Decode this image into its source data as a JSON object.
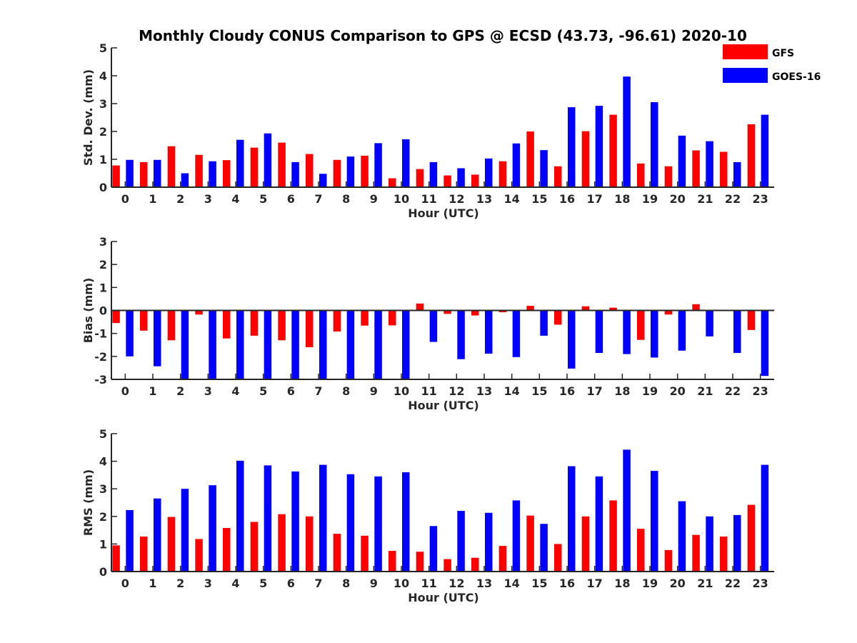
{
  "title": "Monthly Cloudy CONUS Comparison to GPS @ ECSD (43.73, -96.61) 2020-10",
  "legend": [
    {
      "name": "GFS",
      "color": "#ff0000"
    },
    {
      "name": "GOES-16",
      "color": "#0000ff"
    }
  ],
  "chart_data": [
    {
      "type": "bar",
      "title": "Monthly Cloudy CONUS Comparison to GPS @ ECSD (43.73, -96.61) 2020-10",
      "xlabel": "Hour (UTC)",
      "ylabel": "Std. Dev. (mm)",
      "ylim": [
        0,
        5
      ],
      "yticks": [
        0,
        1,
        2,
        3,
        4,
        5
      ],
      "categories": [
        "0",
        "1",
        "2",
        "3",
        "4",
        "5",
        "6",
        "7",
        "8",
        "9",
        "10",
        "11",
        "12",
        "13",
        "14",
        "15",
        "16",
        "17",
        "18",
        "19",
        "20",
        "21",
        "22",
        "23"
      ],
      "series": [
        {
          "name": "GFS",
          "color": "#ff0000",
          "values": [
            0.78,
            0.9,
            1.47,
            1.16,
            0.97,
            1.42,
            1.6,
            1.19,
            0.98,
            1.13,
            0.32,
            0.65,
            0.42,
            0.45,
            0.93,
            2.0,
            0.75,
            2.01,
            2.6,
            0.85,
            0.75,
            1.32,
            1.27,
            2.26
          ]
        },
        {
          "name": "GOES-16",
          "color": "#0000ff",
          "values": [
            0.98,
            0.98,
            0.5,
            0.93,
            1.7,
            1.93,
            0.9,
            0.48,
            1.1,
            1.58,
            1.72,
            0.9,
            0.68,
            1.03,
            1.57,
            1.33,
            2.87,
            2.92,
            3.97,
            3.05,
            1.85,
            1.65,
            0.9,
            2.6
          ]
        }
      ]
    },
    {
      "type": "bar",
      "title": "",
      "xlabel": "Hour (UTC)",
      "ylabel": "Bias (mm)",
      "ylim": [
        -3,
        3
      ],
      "yticks": [
        -3,
        -2,
        -1,
        0,
        1,
        2,
        3
      ],
      "categories": [
        "0",
        "1",
        "2",
        "3",
        "4",
        "5",
        "6",
        "7",
        "8",
        "9",
        "10",
        "11",
        "12",
        "13",
        "14",
        "15",
        "16",
        "17",
        "18",
        "19",
        "20",
        "21",
        "22",
        "23"
      ],
      "series": [
        {
          "name": "GFS",
          "color": "#ff0000",
          "values": [
            -0.55,
            -0.88,
            -1.3,
            -0.18,
            -1.22,
            -1.1,
            -1.3,
            -1.6,
            -0.92,
            -0.66,
            -0.65,
            0.3,
            -0.15,
            -0.22,
            -0.08,
            0.2,
            -0.62,
            0.18,
            0.12,
            -1.28,
            -0.18,
            0.27,
            0.0,
            -0.85
          ]
        },
        {
          "name": "GOES-16",
          "color": "#0000ff",
          "values": [
            -2.0,
            -2.43,
            -2.97,
            -3.0,
            -3.0,
            -3.0,
            -3.0,
            -3.0,
            -3.0,
            -3.0,
            -3.0,
            -1.37,
            -2.12,
            -1.88,
            -2.03,
            -1.1,
            -2.53,
            -1.85,
            -1.9,
            -2.05,
            -1.75,
            -1.13,
            -1.85,
            -2.85
          ]
        }
      ]
    },
    {
      "type": "bar",
      "title": "",
      "xlabel": "Hour (UTC)",
      "ylabel": "RMS (mm)",
      "ylim": [
        0,
        5
      ],
      "yticks": [
        0,
        1,
        2,
        3,
        4,
        5
      ],
      "categories": [
        "0",
        "1",
        "2",
        "3",
        "4",
        "5",
        "6",
        "7",
        "8",
        "9",
        "10",
        "11",
        "12",
        "13",
        "14",
        "15",
        "16",
        "17",
        "18",
        "19",
        "20",
        "21",
        "22",
        "23"
      ],
      "series": [
        {
          "name": "GFS",
          "color": "#ff0000",
          "values": [
            0.95,
            1.27,
            1.98,
            1.18,
            1.58,
            1.8,
            2.08,
            2.0,
            1.37,
            1.3,
            0.75,
            0.72,
            0.45,
            0.5,
            0.93,
            2.03,
            1.0,
            2.0,
            2.58,
            1.55,
            0.78,
            1.33,
            1.27,
            2.42
          ]
        },
        {
          "name": "GOES-16",
          "color": "#0000ff",
          "values": [
            2.23,
            2.65,
            3.0,
            3.13,
            4.02,
            3.85,
            3.63,
            3.87,
            3.53,
            3.45,
            3.6,
            1.65,
            2.2,
            2.13,
            2.58,
            1.73,
            3.82,
            3.45,
            4.42,
            3.65,
            2.55,
            2.0,
            2.05,
            3.87
          ]
        }
      ]
    }
  ]
}
